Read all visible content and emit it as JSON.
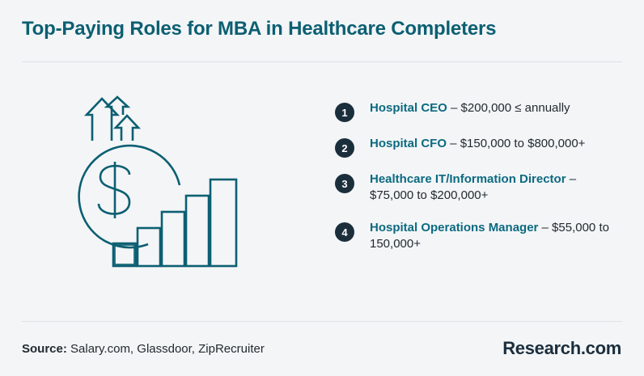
{
  "header": {
    "title": "Top-Paying Roles for MBA in Healthcare Completers"
  },
  "illustration": {
    "icons": [
      "dollar-coin-icon",
      "growth-bars-icon",
      "up-arrows-icon"
    ],
    "stroke_color": "#0c5f72"
  },
  "roles": [
    {
      "number": "1",
      "name": "Hospital CEO",
      "detail": " – $200,000 ≤ annually"
    },
    {
      "number": "2",
      "name": "Hospital CFO",
      "detail": " – $150,000 to $800,000+"
    },
    {
      "number": "3",
      "name": "Healthcare IT/Information Director",
      "detail": " – $75,000 to $200,000+"
    },
    {
      "number": "4",
      "name": "Hospital Operations Manager",
      "detail": " – $55,000 to 150,000+"
    }
  ],
  "footer": {
    "source_label": "Source:",
    "source_text": " Salary.com, Glassdoor, ZipRecruiter",
    "brand": "Research.com"
  },
  "colors": {
    "accent": "#0c6a80",
    "badge": "#1b2e3c",
    "background": "#f3f5f7"
  }
}
